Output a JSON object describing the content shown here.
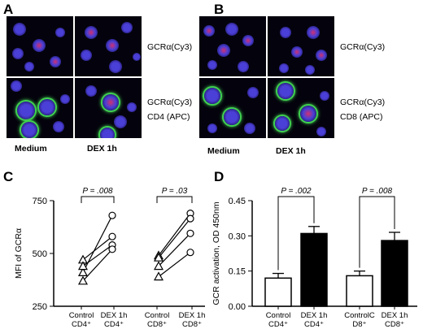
{
  "panels": {
    "A": {
      "letter": "A",
      "stain_top": "GCRα(Cy3)",
      "stain_bottom_1": "GCRα(Cy3)",
      "stain_bottom_2": "CD4 (APC)",
      "cond_left": "Medium",
      "cond_right": "DEX 1h"
    },
    "B": {
      "letter": "B",
      "stain_top": "GCRα(Cy3)",
      "stain_bottom_1": "GCRα(Cy3)",
      "stain_bottom_2": "CD8 (APC)",
      "cond_left": "Medium",
      "cond_right": "DEX 1h"
    },
    "C": {
      "letter": "C"
    },
    "D": {
      "letter": "D"
    }
  },
  "colors": {
    "nucleus": "#4a3fd6",
    "gcr": "#d03070",
    "apc_ring": "#40d050",
    "background": "#04030d"
  },
  "chart_data": [
    {
      "type": "scatter",
      "panel": "C",
      "ylabel": "MFI of GCRα",
      "ylim": [
        250,
        750
      ],
      "yticks": [
        "250",
        "500",
        "750"
      ],
      "categories": [
        [
          "Control",
          "CD4⁺"
        ],
        [
          "DEX 1h",
          "CD4⁺"
        ],
        [
          "Control",
          "CD8⁺"
        ],
        [
          "DEX 1h",
          "CD8⁺"
        ]
      ],
      "groups": [
        {
          "control": [
            410,
            470,
            440,
            370
          ],
          "dex": [
            680,
            580,
            540,
            520
          ],
          "p": "P = .008"
        },
        {
          "control": [
            490,
            480,
            440,
            390
          ],
          "dex": [
            690,
            665,
            595,
            505
          ],
          "p": "P = .03"
        }
      ]
    },
    {
      "type": "bar",
      "panel": "D",
      "ylabel": "GCR activation, OD 450nm",
      "ylim": [
        0,
        0.45
      ],
      "yticks": [
        "0.00",
        "0.15",
        "0.30",
        "0.45"
      ],
      "categories": [
        [
          "Control",
          "CD4⁺"
        ],
        [
          "DEX 1h",
          "CD4⁺"
        ],
        [
          "ControlC",
          "D8⁺"
        ],
        [
          "DEX 1h",
          "CD8⁺"
        ]
      ],
      "values": [
        0.12,
        0.31,
        0.13,
        0.28
      ],
      "errors": [
        0.02,
        0.03,
        0.02,
        0.035
      ],
      "fills": [
        "white",
        "black",
        "white",
        "black"
      ],
      "pvalues": [
        "P = .002",
        "P = .008"
      ]
    }
  ]
}
